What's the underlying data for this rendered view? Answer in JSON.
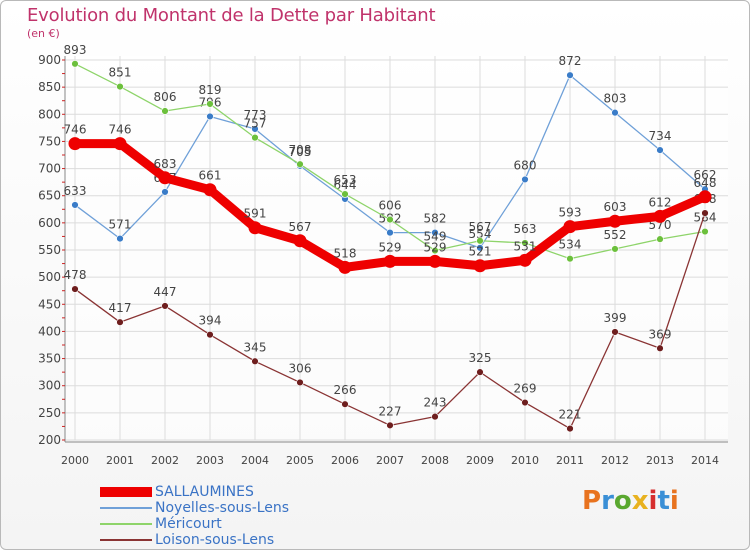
{
  "title": "Evolution du Montant de la Dette par Habitant",
  "unit": "(en €)",
  "brand": {
    "text": "Proxiti",
    "letter_colors": [
      "#e8731f",
      "#3a8fd6",
      "#5aa830",
      "#e8b21f",
      "#d62f2f",
      "#3a8fd6",
      "#e8731f"
    ]
  },
  "chart_data": {
    "type": "line",
    "x": [
      "2000",
      "2001",
      "2002",
      "2003",
      "2004",
      "2005",
      "2006",
      "2007",
      "2008",
      "2009",
      "2010",
      "2011",
      "2012",
      "2013",
      "2014"
    ],
    "ylim": [
      200,
      900
    ],
    "yticks": [
      "200",
      "250",
      "300",
      "350",
      "400",
      "450",
      "500",
      "550",
      "600",
      "650",
      "700",
      "750",
      "800",
      "850",
      "900"
    ],
    "grid": true,
    "legend_position": "bottom-left",
    "series": [
      {
        "name": "Noyelles-sous-Lens",
        "color": "#6fa0d8",
        "marker": "#3a7cc8",
        "values": [
          633,
          571,
          657,
          796,
          773,
          705,
          644,
          582,
          582,
          554,
          680,
          872,
          803,
          734,
          662
        ],
        "labels": [
          "633",
          "571",
          "657",
          "796",
          "773",
          "705",
          "644",
          "582",
          "582",
          "554",
          "680",
          "872",
          "803",
          "734",
          "662"
        ]
      },
      {
        "name": "Méricourt",
        "color": "#8ed46a",
        "marker": "#6cc03c",
        "values": [
          893,
          851,
          806,
          819,
          757,
          708,
          653,
          606,
          549,
          567,
          563,
          534,
          552,
          570,
          584
        ],
        "labels": [
          "893",
          "851",
          "806",
          "819",
          "757",
          "708",
          "653",
          "606",
          "549",
          "567",
          "563",
          "534",
          "552",
          "570",
          "584"
        ]
      },
      {
        "name": "Loison-sous-Lens",
        "color": "#8a3434",
        "marker": "#6e1e1e",
        "values": [
          478,
          417,
          447,
          394,
          345,
          306,
          266,
          227,
          243,
          325,
          269,
          221,
          399,
          369,
          618
        ],
        "labels": [
          "478",
          "417",
          "447",
          "394",
          "345",
          "306",
          "266",
          "227",
          "243",
          "325",
          "269",
          "221",
          "399",
          "369",
          "618"
        ]
      },
      {
        "name": "SALLAUMINES",
        "color": "#ee0000",
        "marker": "#ee0000",
        "values": [
          746,
          746,
          683,
          661,
          591,
          567,
          518,
          529,
          529,
          521,
          531,
          593,
          603,
          612,
          648
        ],
        "labels": [
          "746",
          "746",
          "683",
          "661",
          "591",
          "567",
          "518",
          "529",
          "529",
          "521",
          "531",
          "593",
          "603",
          "612",
          "648"
        ]
      }
    ]
  }
}
